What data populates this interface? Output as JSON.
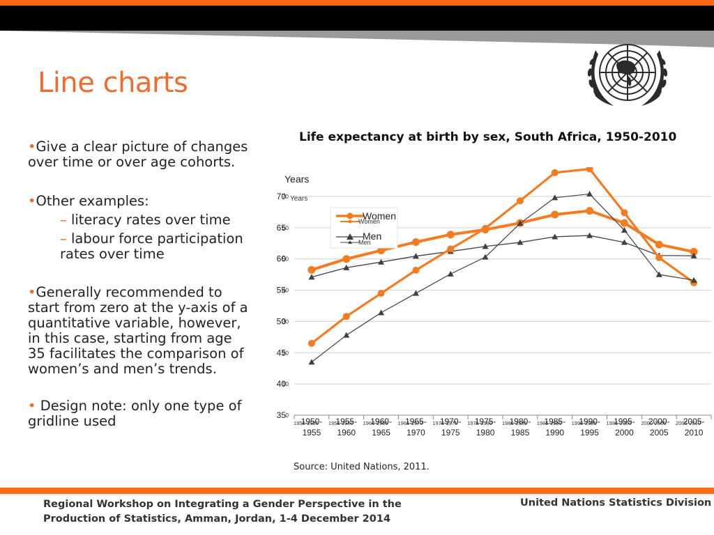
{
  "slide": {
    "title": "Line charts",
    "bullets": [
      "Give a clear picture of changes over time or over age cohorts.",
      "Other examples:",
      "Generally recommended to start from zero at the y-axis of a quantitative variable, however, in this case, starting from age 35 facilitates the comparison of women’s and men’s trends.",
      "Design note: only one type of gridline used"
    ],
    "sub_bullets": [
      "literacy rates over time",
      "labour force participation rates over time"
    ],
    "source": "Source: United Nations, 2011."
  },
  "footer": {
    "left": "Regional Workshop on Integrating a Gender Perspective in the Production of Statistics, Amman, Jordan, 1-4 December 2014",
    "right": "United Nations Statistics Division"
  },
  "colors": {
    "accent": "#ee6d2d",
    "bar_orange": "#ff6a13",
    "women": "#f47b20",
    "men": "#404040",
    "band_black": "#000000",
    "band_grey": "#8c8c8c"
  },
  "logo": {
    "icon": "un-emblem-icon"
  },
  "chart_data": [
    {
      "type": "line",
      "title": "Life expectancy at birth by sex, South Africa, 1950-2010",
      "ylabel": "Years",
      "ylim": [
        35,
        70
      ],
      "yticks": [
        "35",
        "40",
        "45",
        "50",
        "55",
        "60",
        "65",
        "70"
      ],
      "categories": [
        "1950-1955",
        "1955-1960",
        "1960-1965",
        "1965-1970",
        "1970-1975",
        "1975-1980",
        "1980-1985",
        "1985-1990",
        "1990-1995",
        "1995-2000",
        "2000-2005",
        "2005-2010"
      ],
      "category_lines": [
        [
          "1950-",
          "1955"
        ],
        [
          "1955-",
          "1960"
        ],
        [
          "1960-",
          "1965"
        ],
        [
          "1965-",
          "1970"
        ],
        [
          "1970-",
          "1975"
        ],
        [
          "1975-",
          "1980"
        ],
        [
          "1980-",
          "1985"
        ],
        [
          "1985-",
          "1990"
        ],
        [
          "1990-",
          "1995"
        ],
        [
          "1995-",
          "2000"
        ],
        [
          "2000-",
          "2005"
        ],
        [
          "2005-",
          "2010"
        ]
      ],
      "series": [
        {
          "name": "Women",
          "values": [
            46.5,
            50.8,
            54.5,
            58.2,
            61.6,
            64.9,
            69.3,
            73.8,
            74.4,
            67.4,
            60.2,
            56.2
          ]
        },
        {
          "name": "Men",
          "values": [
            43.5,
            47.8,
            51.4,
            54.5,
            57.6,
            60.3,
            65.7,
            69.8,
            70.4,
            64.6,
            57.5,
            56.6
          ]
        }
      ],
      "legend": "top-left",
      "grid": "horizontal"
    },
    {
      "type": "line",
      "title": "",
      "ylabel": "Years",
      "ylim": [
        0,
        70
      ],
      "yticks": [
        "0",
        "10",
        "20",
        "30",
        "40",
        "50",
        "60",
        "70"
      ],
      "categories": [
        "1950-1955",
        "1955-1960",
        "1960-1965",
        "1965-1970",
        "1970-1975",
        "1975-1980",
        "1980-1985",
        "1985-1990",
        "1990-1995",
        "1995-2000",
        "2000-2005",
        "2005-2010"
      ],
      "series": [
        {
          "name": "Women",
          "values": [
            46.5,
            50.0,
            52.7,
            55.4,
            57.8,
            59.4,
            61.5,
            64.2,
            65.4,
            61.5,
            54.6,
            52.3
          ]
        },
        {
          "name": "Men",
          "values": [
            44.2,
            47.2,
            49.0,
            50.9,
            52.4,
            54.0,
            55.3,
            57.1,
            57.5,
            55.3,
            51.1,
            51.0
          ]
        }
      ],
      "legend": "top-left",
      "grid": "horizontal"
    }
  ]
}
